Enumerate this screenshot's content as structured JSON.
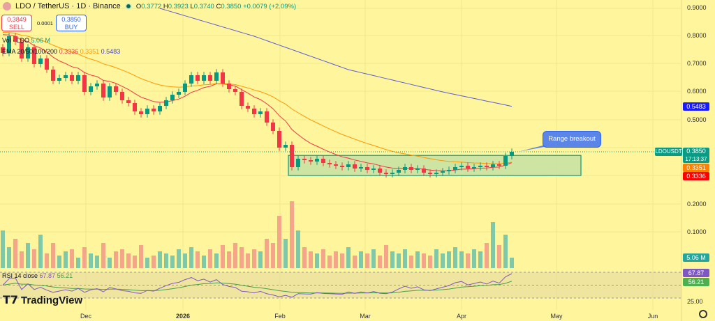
{
  "header": {
    "symbol": "LDO / TetherUS · 1D · Binance",
    "open_label": "O",
    "open": "0.3772",
    "high_label": "H",
    "high": "0.3923",
    "low_label": "L",
    "low": "0.3740",
    "close_label": "C",
    "close": "0.3850",
    "change": "+0.0079 (+2.09%)"
  },
  "trade": {
    "sell_price": "0.3849",
    "sell_label": "SELL",
    "spread": "0.0001",
    "buy_price": "0.3850",
    "buy_label": "BUY"
  },
  "legend": {
    "vol_label": "Vol · LDO",
    "vol_value": "5.06 M",
    "ema_label": "EMA 20/50/100/200",
    "ema20": "0.3336",
    "ema50": "0.3351",
    "ema200": "0.5483",
    "rsi_label": "RSI 14 close",
    "rsi_value": "67.87",
    "rsi_ma": "56.21"
  },
  "price_axis": [
    "0.9000",
    "0.8000",
    "0.7000",
    "0.6000",
    "0.5000",
    "0.2000",
    "0.1000"
  ],
  "tags": {
    "ema200": "0.5483",
    "symbol": "LDOUSDT",
    "price": "0.3850",
    "countdown": "17:13:37",
    "ema50": "0.3351",
    "ema20": "0.3336",
    "volume": "5.06 M",
    "rsi": "67.87",
    "rsi_ma": "56.21",
    "rsi_axis": "25.00"
  },
  "time_axis": [
    "Dec",
    "2026",
    "Feb",
    "Mar",
    "Apr",
    "May",
    "Jun"
  ],
  "annotation": "Range breakout",
  "branding": "TradingView",
  "colors": {
    "up": "#089981",
    "down": "#f23645",
    "ema20": "#f23645",
    "ema50": "#ff9800",
    "ema200": "#5b5bd6",
    "rsi": "#7e57c2",
    "rsi_ma": "#43a047",
    "range_box": "#c5e1a5"
  },
  "chart_data": {
    "type": "candlestick",
    "closes": [
      0.74,
      0.8,
      0.78,
      0.72,
      0.76,
      0.7,
      0.72,
      0.68,
      0.64,
      0.65,
      0.66,
      0.64,
      0.66,
      0.6,
      0.62,
      0.63,
      0.58,
      0.62,
      0.6,
      0.57,
      0.56,
      0.53,
      0.52,
      0.54,
      0.53,
      0.55,
      0.57,
      0.59,
      0.6,
      0.63,
      0.66,
      0.64,
      0.66,
      0.64,
      0.67,
      0.63,
      0.61,
      0.6,
      0.55,
      0.54,
      0.52,
      0.53,
      0.49,
      0.46,
      0.4,
      0.41,
      0.33,
      0.36,
      0.355,
      0.35,
      0.36,
      0.345,
      0.34,
      0.335,
      0.33,
      0.34,
      0.325,
      0.33,
      0.32,
      0.325,
      0.31,
      0.305,
      0.31,
      0.32,
      0.33,
      0.32,
      0.325,
      0.31,
      0.305,
      0.31,
      0.315,
      0.32,
      0.33,
      0.335,
      0.325,
      0.33,
      0.335,
      0.33,
      0.34,
      0.335,
      0.37,
      0.385
    ],
    "volumes_m": [
      18,
      10,
      14,
      8,
      12,
      9,
      16,
      7,
      12,
      6,
      8,
      9,
      5,
      10,
      7,
      6,
      12,
      5,
      8,
      9,
      7,
      6,
      11,
      5,
      6,
      8,
      7,
      6,
      9,
      7,
      10,
      8,
      6,
      9,
      7,
      11,
      8,
      12,
      10,
      7,
      9,
      8,
      14,
      12,
      25,
      14,
      32,
      18,
      10,
      8,
      7,
      9,
      6,
      8,
      7,
      10,
      6,
      8,
      7,
      9,
      6,
      11,
      8,
      7,
      9,
      6,
      8,
      7,
      6,
      9,
      7,
      8,
      10,
      8,
      7,
      9,
      8,
      12,
      22,
      11,
      16,
      5
    ],
    "ema200_knots": [
      [
        25,
        0.9
      ],
      [
        40,
        0.8
      ],
      [
        55,
        0.68
      ],
      [
        70,
        0.6
      ],
      [
        81,
        0.5483
      ]
    ],
    "range_box": {
      "top": 0.372,
      "bottom": 0.3
    },
    "ylim": [
      0.05,
      0.92
    ],
    "rsi_bands": [
      70,
      50,
      30
    ]
  }
}
